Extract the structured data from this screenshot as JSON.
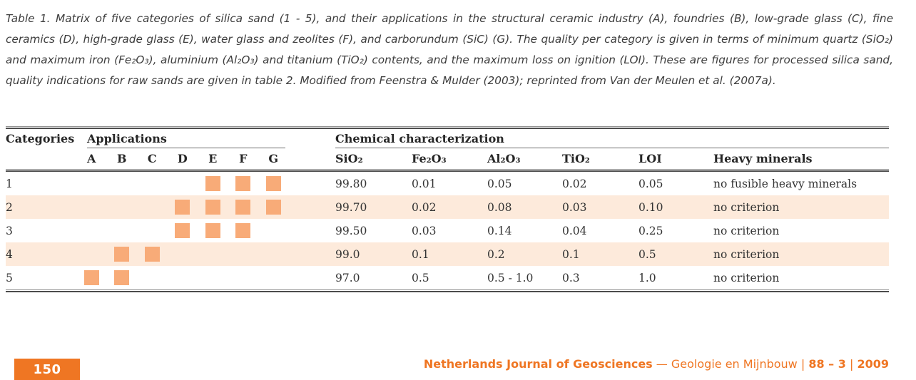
{
  "colors": {
    "accent_orange": "#ef7623",
    "square_orange": "#f8ab78",
    "row_shade": "#fdeadb",
    "ink": "#2e2e2e"
  },
  "caption": {
    "text": "Table 1.  Matrix of five categories of silica sand (1 - 5), and their applications in the structural ceramic industry (A), foundries (B), low-grade glass (C), fine ceramics (D), high-grade glass (E), water glass and zeolites (F), and carborundum (SiC) (G). The quality per category is given in terms of minimum quartz (SiO₂) and maximum iron (Fe₂O₃), aluminium (Al₂O₃) and titanium (TiO₂) contents, and the maximum loss on ignition (LOI). These are figures for processed silica sand, quality indications for raw sands are given in table 2. Modified from Feenstra & Mulder (2003); reprinted from Van der Meulen et al. (2007a)."
  },
  "table": {
    "categories_header": "Categories",
    "applications_header": "Applications",
    "chemical_header": "Chemical characterization",
    "app_columns": [
      "A",
      "B",
      "C",
      "D",
      "E",
      "F",
      "G"
    ],
    "chem_columns": [
      "SiO₂",
      "Fe₂O₃",
      "Al₂O₃",
      "TiO₂",
      "LOI",
      "Heavy minerals"
    ],
    "rows": [
      {
        "category": "1",
        "applications": [
          "E",
          "F",
          "G"
        ],
        "sio2": "99.80",
        "fe2o3": "0.01",
        "al2o3": "0.05",
        "tio2": "0.02",
        "loi": "0.05",
        "heavy": "no fusible heavy minerals"
      },
      {
        "category": "2",
        "applications": [
          "D",
          "E",
          "F",
          "G"
        ],
        "sio2": "99.70",
        "fe2o3": "0.02",
        "al2o3": "0.08",
        "tio2": "0.03",
        "loi": "0.10",
        "heavy": "no criterion"
      },
      {
        "category": "3",
        "applications": [
          "D",
          "E",
          "F"
        ],
        "sio2": "99.50",
        "fe2o3": "0.03",
        "al2o3": "0.14",
        "tio2": "0.04",
        "loi": "0.25",
        "heavy": "no criterion"
      },
      {
        "category": "4",
        "applications": [
          "B",
          "C"
        ],
        "sio2": "99.0",
        "fe2o3": "0.1",
        "al2o3": "0.2",
        "tio2": "0.1",
        "loi": "0.5",
        "heavy": "no criterion"
      },
      {
        "category": "5",
        "applications": [
          "A",
          "B"
        ],
        "sio2": "97.0",
        "fe2o3": "0.5",
        "al2o3": "0.5 - 1.0",
        "tio2": "0.3",
        "loi": "1.0",
        "heavy": "no criterion"
      }
    ]
  },
  "footer": {
    "page_number": "150",
    "journal_bold": "Netherlands Journal of Geosciences",
    "dash": "—",
    "journal_light": "Geologie en Mijnbouw",
    "separator": "|",
    "issue_bold": "88 – 3",
    "year_bold": "2009"
  }
}
